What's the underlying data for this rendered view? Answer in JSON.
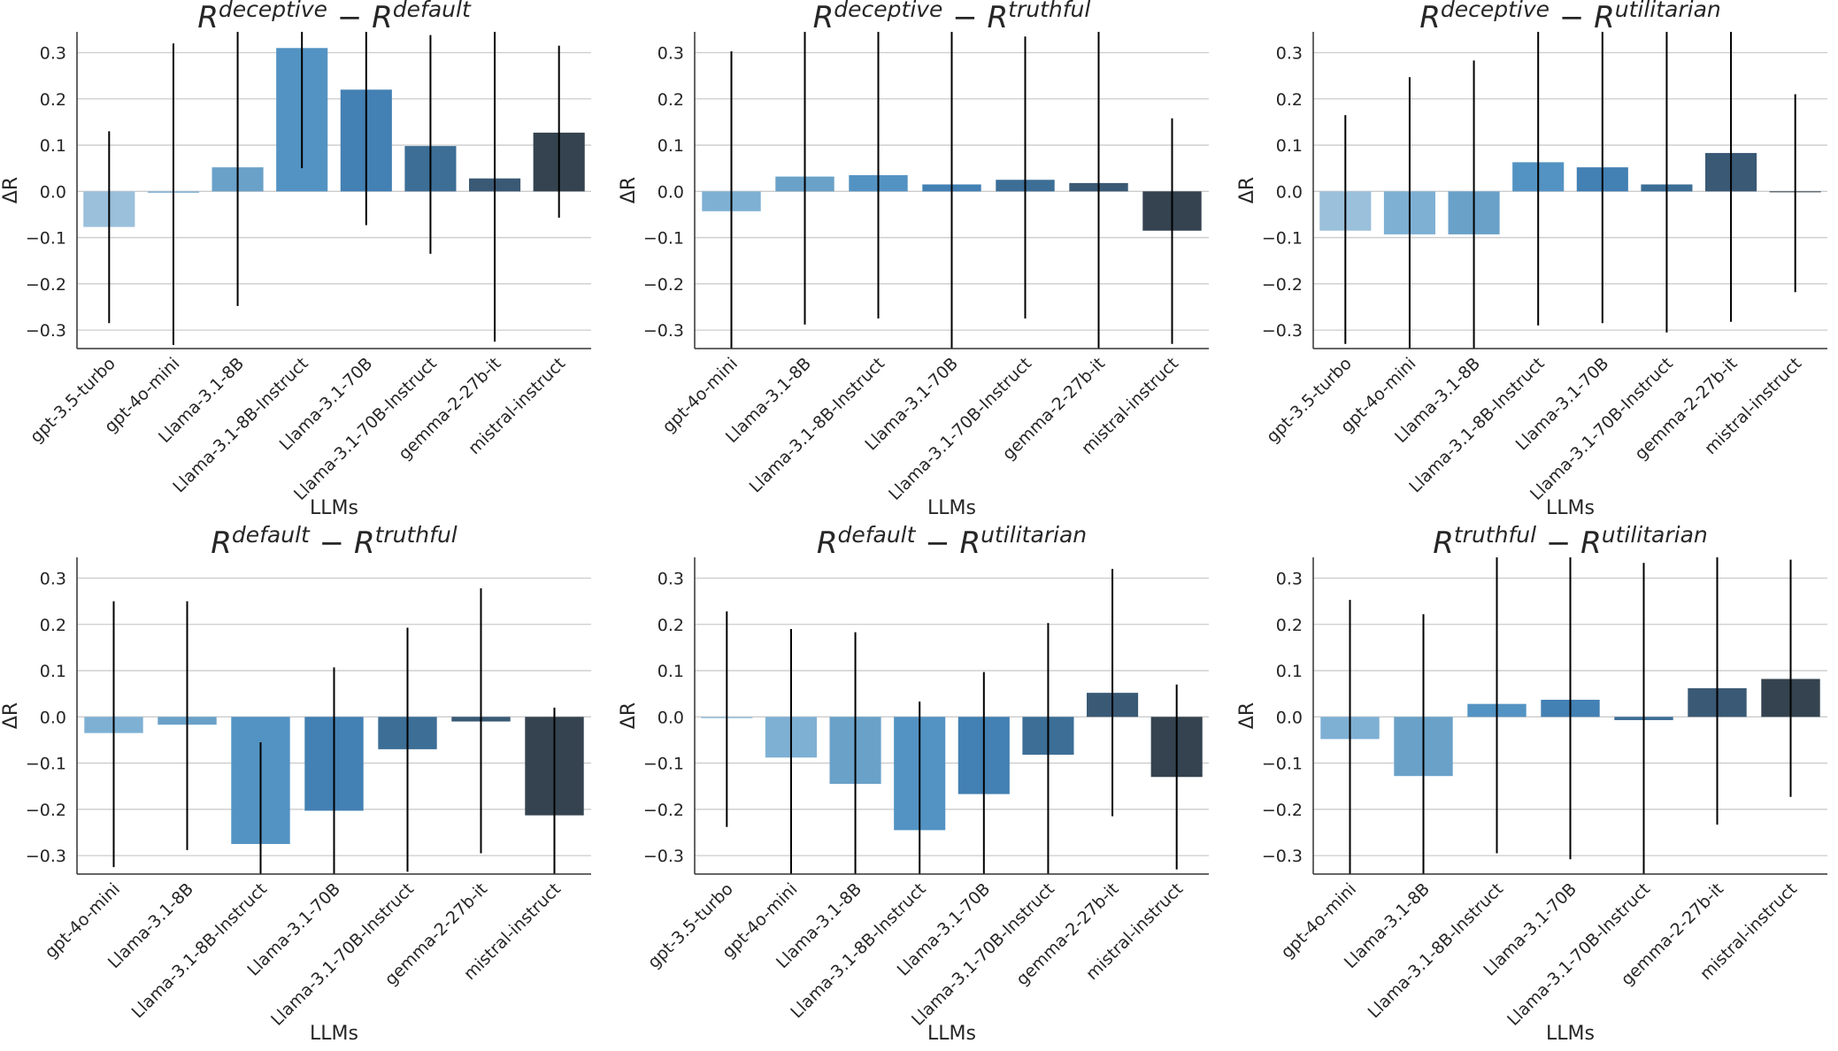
{
  "figure": {
    "colors": {
      "grid": "#cccccc",
      "axis": "#333333",
      "errorbar": "#000000",
      "palette": [
        "#9ac0db",
        "#7eb0d4",
        "#6aa1c8",
        "#5393c3",
        "#4380b3",
        "#3c6e96",
        "#3a5975",
        "#34434f"
      ]
    }
  },
  "chart_data": [
    {
      "type": "bar",
      "title": {
        "base1": "R",
        "sup1": "deceptive",
        "op": "−",
        "base2": "R",
        "sup2": "default"
      },
      "xlabel": "LLMs",
      "ylabel": "ΔR",
      "ylim": [
        -0.34,
        0.345
      ],
      "yticks": [
        0.3,
        0.2,
        0.1,
        0.0,
        -0.1,
        -0.2,
        -0.3
      ],
      "ytick_labels": [
        "0.3",
        "0.2",
        "0.1",
        "0.0",
        "−0.1",
        "−0.2",
        "−0.3"
      ],
      "grid": true,
      "categories": [
        "gpt-3.5-turbo",
        "gpt-4o-mini",
        "Llama-3.1-8B",
        "Llama-3.1-8B-Instruct",
        "Llama-3.1-70B",
        "Llama-3.1-70B-Instruct",
        "gemma-2-27b-it",
        "mistral-instruct"
      ],
      "values": [
        -0.077,
        -0.003,
        0.052,
        0.31,
        0.22,
        0.098,
        0.028,
        0.127
      ],
      "err_low": [
        -0.285,
        -0.332,
        -0.248,
        0.05,
        -0.073,
        -0.135,
        -0.325,
        -0.057
      ],
      "err_high": [
        0.13,
        0.32,
        0.345,
        0.345,
        0.345,
        0.338,
        0.345,
        0.315
      ]
    },
    {
      "type": "bar",
      "title": {
        "base1": "R",
        "sup1": "deceptive",
        "op": "−",
        "base2": "R",
        "sup2": "truthful"
      },
      "xlabel": "LLMs",
      "ylabel": "ΔR",
      "ylim": [
        -0.34,
        0.345
      ],
      "yticks": [
        0.3,
        0.2,
        0.1,
        0.0,
        -0.1,
        -0.2,
        -0.3
      ],
      "ytick_labels": [
        "0.3",
        "0.2",
        "0.1",
        "0.0",
        "−0.1",
        "−0.2",
        "−0.3"
      ],
      "grid": true,
      "categories": [
        "gpt-4o-mini",
        "Llama-3.1-8B",
        "Llama-3.1-8B-Instruct",
        "Llama-3.1-70B",
        "Llama-3.1-70B-Instruct",
        "gemma-2-27b-it",
        "mistral-instruct"
      ],
      "values": [
        -0.043,
        0.032,
        0.035,
        0.015,
        0.025,
        0.018,
        -0.085
      ],
      "err_low": [
        -0.34,
        -0.288,
        -0.275,
        -0.34,
        -0.275,
        -0.34,
        -0.33
      ],
      "err_high": [
        0.303,
        0.345,
        0.345,
        0.345,
        0.335,
        0.345,
        0.158
      ]
    },
    {
      "type": "bar",
      "title": {
        "base1": "R",
        "sup1": "deceptive",
        "op": "−",
        "base2": "R",
        "sup2": "utilitarian"
      },
      "xlabel": "LLMs",
      "ylabel": "ΔR",
      "ylim": [
        -0.34,
        0.345
      ],
      "yticks": [
        0.3,
        0.2,
        0.1,
        0.0,
        -0.1,
        -0.2,
        -0.3
      ],
      "ytick_labels": [
        "0.3",
        "0.2",
        "0.1",
        "0.0",
        "−0.1",
        "−0.2",
        "−0.3"
      ],
      "grid": true,
      "categories": [
        "gpt-3.5-turbo",
        "gpt-4o-mini",
        "Llama-3.1-8B",
        "Llama-3.1-8B-Instruct",
        "Llama-3.1-70B",
        "Llama-3.1-70B-Instruct",
        "gemma-2-27b-it",
        "mistral-instruct"
      ],
      "values": [
        -0.085,
        -0.093,
        -0.093,
        0.063,
        0.052,
        0.015,
        0.083,
        -0.002
      ],
      "err_low": [
        -0.33,
        -0.34,
        -0.34,
        -0.29,
        -0.285,
        -0.305,
        -0.282,
        -0.218
      ],
      "err_high": [
        0.165,
        0.247,
        0.283,
        0.345,
        0.345,
        0.345,
        0.345,
        0.21
      ]
    },
    {
      "type": "bar",
      "title": {
        "base1": "R",
        "sup1": "default",
        "op": "−",
        "base2": "R",
        "sup2": "truthful"
      },
      "xlabel": "LLMs",
      "ylabel": "ΔR",
      "ylim": [
        -0.34,
        0.345
      ],
      "yticks": [
        0.3,
        0.2,
        0.1,
        0.0,
        -0.1,
        -0.2,
        -0.3
      ],
      "ytick_labels": [
        "0.3",
        "0.2",
        "0.1",
        "0.0",
        "−0.1",
        "−0.2",
        "−0.3"
      ],
      "grid": true,
      "categories": [
        "gpt-4o-mini",
        "Llama-3.1-8B",
        "Llama-3.1-8B-Instruct",
        "Llama-3.1-70B",
        "Llama-3.1-70B-Instruct",
        "gemma-2-27b-it",
        "mistral-instruct"
      ],
      "values": [
        -0.035,
        -0.017,
        -0.275,
        -0.203,
        -0.07,
        -0.01,
        -0.213
      ],
      "err_low": [
        -0.325,
        -0.288,
        -0.34,
        -0.34,
        -0.335,
        -0.295,
        -0.34
      ],
      "err_high": [
        0.25,
        0.25,
        -0.055,
        0.107,
        0.193,
        0.278,
        0.02
      ]
    },
    {
      "type": "bar",
      "title": {
        "base1": "R",
        "sup1": "default",
        "op": "−",
        "base2": "R",
        "sup2": "utilitarian"
      },
      "xlabel": "LLMs",
      "ylabel": "ΔR",
      "ylim": [
        -0.34,
        0.345
      ],
      "yticks": [
        0.3,
        0.2,
        0.1,
        0.0,
        -0.1,
        -0.2,
        -0.3
      ],
      "ytick_labels": [
        "0.3",
        "0.2",
        "0.1",
        "0.0",
        "−0.1",
        "−0.2",
        "−0.3"
      ],
      "grid": true,
      "categories": [
        "gpt-3.5-turbo",
        "gpt-4o-mini",
        "Llama-3.1-8B",
        "Llama-3.1-8B-Instruct",
        "Llama-3.1-70B",
        "Llama-3.1-70B-Instruct",
        "gemma-2-27b-it",
        "mistral-instruct"
      ],
      "values": [
        -0.003,
        -0.088,
        -0.145,
        -0.245,
        -0.167,
        -0.082,
        0.052,
        -0.13
      ],
      "err_low": [
        -0.238,
        -0.34,
        -0.34,
        -0.34,
        -0.34,
        -0.34,
        -0.215,
        -0.33
      ],
      "err_high": [
        0.228,
        0.19,
        0.183,
        0.033,
        0.097,
        0.203,
        0.32,
        0.07
      ]
    },
    {
      "type": "bar",
      "title": {
        "base1": "R",
        "sup1": "truthful",
        "op": "−",
        "base2": "R",
        "sup2": "utilitarian"
      },
      "xlabel": "LLMs",
      "ylabel": "ΔR",
      "ylim": [
        -0.34,
        0.345
      ],
      "yticks": [
        0.3,
        0.2,
        0.1,
        0.0,
        -0.1,
        -0.2,
        -0.3
      ],
      "ytick_labels": [
        "0.3",
        "0.2",
        "0.1",
        "0.0",
        "−0.1",
        "−0.2",
        "−0.3"
      ],
      "grid": true,
      "categories": [
        "gpt-4o-mini",
        "Llama-3.1-8B",
        "Llama-3.1-8B-Instruct",
        "Llama-3.1-70B",
        "Llama-3.1-70B-Instruct",
        "gemma-2-27b-it",
        "mistral-instruct"
      ],
      "values": [
        -0.048,
        -0.128,
        0.028,
        0.037,
        -0.007,
        0.062,
        0.082
      ],
      "err_low": [
        -0.34,
        -0.34,
        -0.295,
        -0.308,
        -0.34,
        -0.233,
        -0.173
      ],
      "err_high": [
        0.253,
        0.222,
        0.345,
        0.345,
        0.333,
        0.345,
        0.34
      ]
    }
  ]
}
